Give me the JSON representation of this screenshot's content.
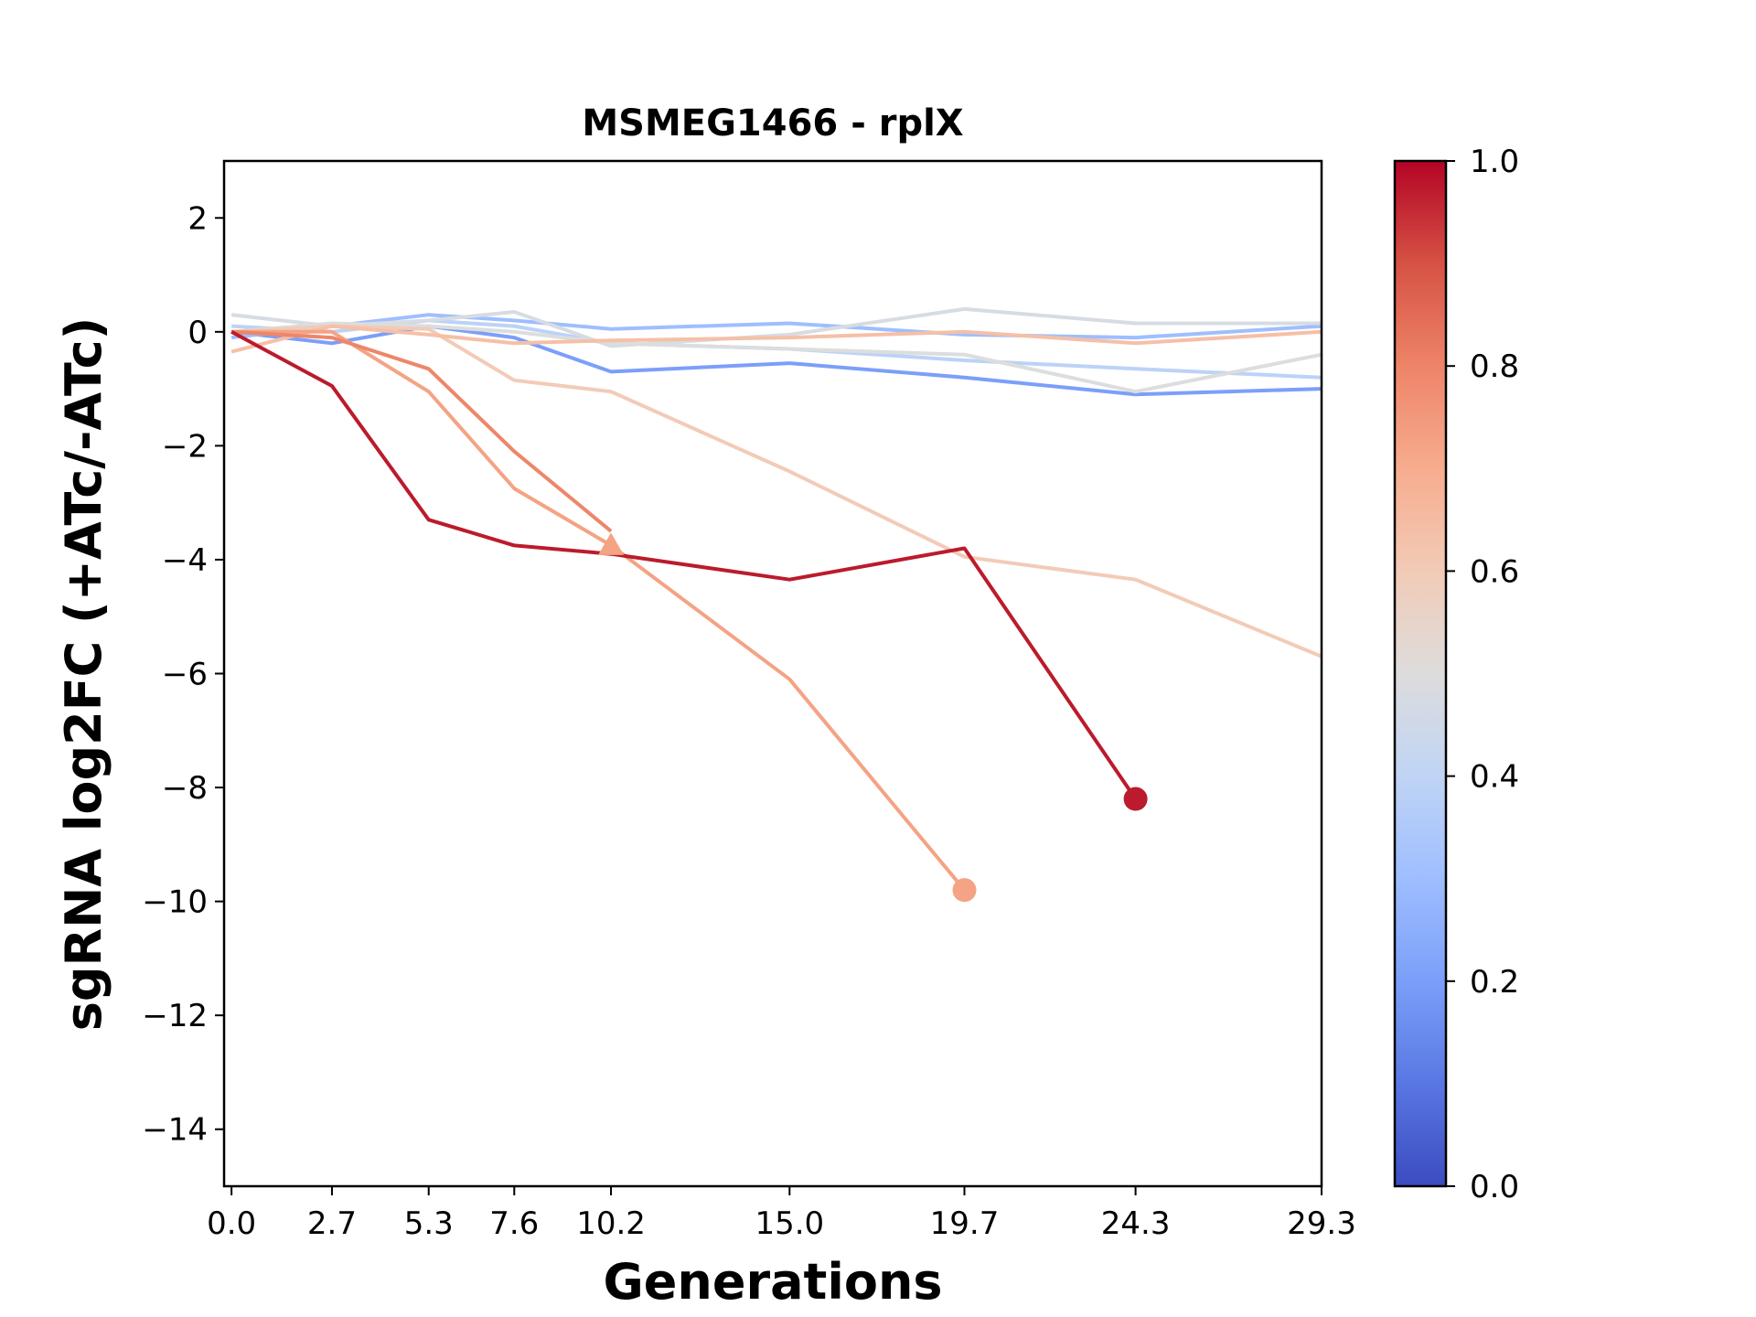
{
  "chart_data": {
    "type": "line",
    "title": "MSMEG1466 - rplX",
    "xlabel": "Generations",
    "ylabel": "sgRNA log2FC (+ATc/-ATc)",
    "x_tick_labels": [
      "0.0",
      "2.7",
      "5.3",
      "7.6",
      "10.2",
      "15.0",
      "19.7",
      "24.3",
      "29.3"
    ],
    "x_tick_values": [
      0,
      2.7,
      5.3,
      7.6,
      10.2,
      15.0,
      19.7,
      24.3,
      29.3
    ],
    "xlim": [
      -0.2,
      29.3
    ],
    "ylim": [
      -15,
      3
    ],
    "y_ticks": [
      2,
      0,
      -2,
      -4,
      -6,
      -8,
      -10,
      -12,
      -14
    ],
    "y_tick_labels": [
      "2",
      "0",
      "−2",
      "−4",
      "−6",
      "−8",
      "−10",
      "−12",
      "−14"
    ],
    "colorbar": {
      "range": [
        0,
        1
      ],
      "ticks": [
        0,
        0.2,
        0.4,
        0.6,
        0.8,
        1.0
      ],
      "tick_labels": [
        "0.0",
        "0.2",
        "0.4",
        "0.6",
        "0.8",
        "1.0"
      ],
      "colormap": "coolwarm"
    },
    "series": [
      {
        "color_value": 0.18,
        "color": "#7b9ff9",
        "x": [
          0,
          2.7,
          5.3,
          7.6,
          10.2,
          15.0,
          19.7,
          24.3,
          29.3
        ],
        "values": [
          0.0,
          -0.2,
          0.1,
          -0.1,
          -0.7,
          -0.55,
          -0.8,
          -1.1,
          -1.0
        ]
      },
      {
        "color_value": 0.28,
        "color": "#9ebeff",
        "x": [
          0,
          2.7,
          5.3,
          7.6,
          10.2,
          15.0,
          19.7,
          24.3,
          29.3
        ],
        "values": [
          -0.1,
          0.1,
          0.3,
          0.2,
          0.05,
          0.15,
          -0.05,
          -0.1,
          0.1
        ]
      },
      {
        "color_value": 0.38,
        "color": "#bcd2f7",
        "x": [
          0,
          2.7,
          5.3,
          7.6,
          10.2,
          15.0,
          19.7,
          24.3,
          29.3
        ],
        "values": [
          0.1,
          0.0,
          0.2,
          0.1,
          -0.2,
          -0.3,
          -0.5,
          -0.65,
          -0.8
        ]
      },
      {
        "color_value": 0.48,
        "color": "#d7dce3",
        "x": [
          0,
          2.7,
          5.3,
          7.6,
          10.2,
          15.0,
          19.7,
          24.3,
          29.3
        ],
        "values": [
          0.3,
          0.1,
          0.2,
          0.35,
          -0.25,
          -0.05,
          0.4,
          0.15,
          0.15
        ]
      },
      {
        "color_value": 0.5,
        "color": "#dcdddd",
        "x": [
          0,
          2.7,
          5.3,
          7.6,
          10.2,
          15.0,
          19.7,
          24.3,
          29.3
        ],
        "values": [
          0.0,
          0.15,
          0.1,
          0.0,
          -0.2,
          -0.3,
          -0.4,
          -1.05,
          -0.4
        ]
      },
      {
        "color_value": 0.6,
        "color": "#f2cbb7",
        "x": [
          0,
          2.7,
          5.3,
          7.6,
          10.2,
          15.0,
          19.7,
          24.3,
          29.3
        ],
        "values": [
          0.0,
          0.1,
          0.05,
          -0.85,
          -1.05,
          -2.45,
          -3.95,
          -4.35,
          -5.7
        ]
      },
      {
        "color_value": 0.66,
        "color": "#f5c0a7",
        "x": [
          0,
          2.7,
          5.3,
          7.6,
          10.2,
          15.0,
          19.7,
          24.3,
          29.3
        ],
        "values": [
          -0.35,
          0.1,
          -0.05,
          -0.2,
          -0.15,
          -0.1,
          0.0,
          -0.2,
          0.0
        ]
      },
      {
        "color_value": 0.72,
        "color": "#f4a384",
        "x": [
          0,
          2.7,
          5.3,
          7.6,
          10.2,
          15.0,
          19.7
        ],
        "values": [
          0.0,
          0.0,
          -1.05,
          -2.75,
          -3.75,
          -6.1,
          -9.8
        ],
        "end_marker": "circle",
        "mid_marker": {
          "x": 10.2,
          "y": -3.75,
          "shape": "triangle"
        }
      },
      {
        "color_value": 0.78,
        "color": "#ee8669",
        "x": [
          0,
          2.7,
          5.3,
          7.6,
          10.2
        ],
        "values": [
          0.0,
          -0.1,
          -0.65,
          -2.1,
          -3.5
        ]
      },
      {
        "color_value": 0.97,
        "color": "#bb1b2c",
        "x": [
          0,
          2.7,
          5.3,
          7.6,
          10.2,
          15.0,
          19.7,
          24.3
        ],
        "values": [
          0.0,
          -0.95,
          -3.3,
          -3.75,
          -3.9,
          -4.35,
          -3.8,
          -8.2
        ],
        "end_marker": "circle"
      }
    ]
  }
}
